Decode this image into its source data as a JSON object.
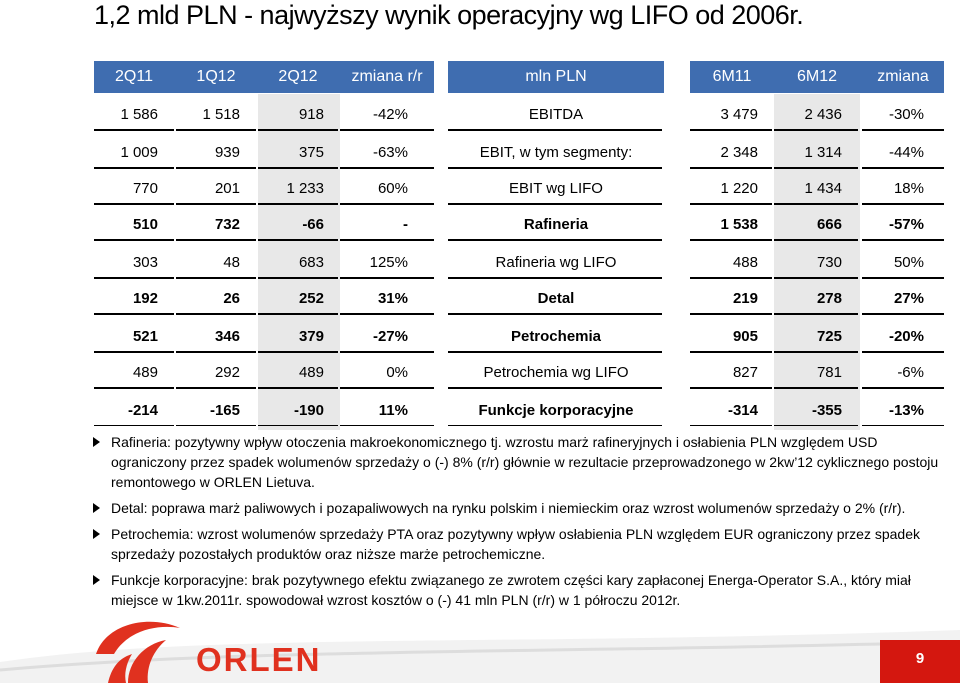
{
  "title": "1,2 mld PLN - najwyższy wynik operacyjny wg LIFO od 2006r.",
  "header": {
    "left": [
      "2Q11",
      "1Q12",
      "2Q12",
      "zmiana r/r"
    ],
    "middle": "mln PLN",
    "right": [
      "6M11",
      "6M12",
      "zmiana"
    ]
  },
  "rows": [
    {
      "left": [
        "1 586",
        "1 518",
        "918",
        "-42%"
      ],
      "label": "EBITDA",
      "right": [
        "3 479",
        "2 436",
        "-30%"
      ],
      "style": "normal"
    },
    {
      "left": [
        "1 009",
        "939",
        "375",
        "-63%"
      ],
      "label": "EBIT, w tym segmenty:",
      "right": [
        "2 348",
        "1 314",
        "-44%"
      ],
      "style": "normal"
    },
    {
      "left": [
        "770",
        "201",
        "1 233",
        "60%"
      ],
      "label": "EBIT wg LIFO",
      "right": [
        "1 220",
        "1 434",
        "18%"
      ],
      "style": "light"
    },
    {
      "left": [
        "510",
        "732",
        "-66",
        "-"
      ],
      "label": "Rafineria",
      "right": [
        "1 538",
        "666",
        "-57%"
      ],
      "style": "bold"
    },
    {
      "left": [
        "303",
        "48",
        "683",
        "125%"
      ],
      "label": "Rafineria wg LIFO",
      "right": [
        "488",
        "730",
        "50%"
      ],
      "style": "light"
    },
    {
      "left": [
        "192",
        "26",
        "252",
        "31%"
      ],
      "label": "Detal",
      "right": [
        "219",
        "278",
        "27%"
      ],
      "style": "bold"
    },
    {
      "left": [
        "521",
        "346",
        "379",
        "-27%"
      ],
      "label": "Petrochemia",
      "right": [
        "905",
        "725",
        "-20%"
      ],
      "style": "bold"
    },
    {
      "left": [
        "489",
        "292",
        "489",
        "0%"
      ],
      "label": "Petrochemia wg LIFO",
      "right": [
        "827",
        "781",
        "-6%"
      ],
      "style": "light"
    },
    {
      "left": [
        "-214",
        "-165",
        "-190",
        "11%"
      ],
      "label": "Funkcje korporacyjne",
      "right": [
        "-314",
        "-355",
        "-13%"
      ],
      "style": "bold"
    }
  ],
  "bullets": [
    "Rafineria: pozytywny wpływ otoczenia makroekonomicznego tj. wzrostu marż rafineryjnych i osłabienia PLN względem USD ograniczony przez spadek wolumenów sprzedaży o (-) 8% (r/r) głównie w rezultacie przeprowadzonego w 2kw’12 cyklicznego postoju remontowego w ORLEN Lietuva.",
    "Detal: poprawa marż paliwowych i pozapaliwowych na rynku polskim i niemieckim oraz wzrost wolumenów sprzedaży o 2% (r/r).",
    "Petrochemia: wzrost wolumenów sprzedaży PTA oraz pozytywny wpływ osłabienia PLN względem EUR ograniczony przez spadek sprzedaży pozostałych produktów oraz niższe marże petrochemiczne.",
    "Funkcje korporacyjne: brak pozytywnego efektu związanego ze zwrotem części kary zapłaconej Energa-Operator S.A., który miał miejsce w 1kw.2011r. spowodował wzrost kosztów o (-) 41 mln PLN (r/r) w 1 półroczu 2012r."
  ],
  "footer": {
    "logo_text": "ORLEN",
    "page_number": "9",
    "colors": {
      "brand_red": "#e0311f",
      "header_blue": "#3f6db0"
    }
  }
}
